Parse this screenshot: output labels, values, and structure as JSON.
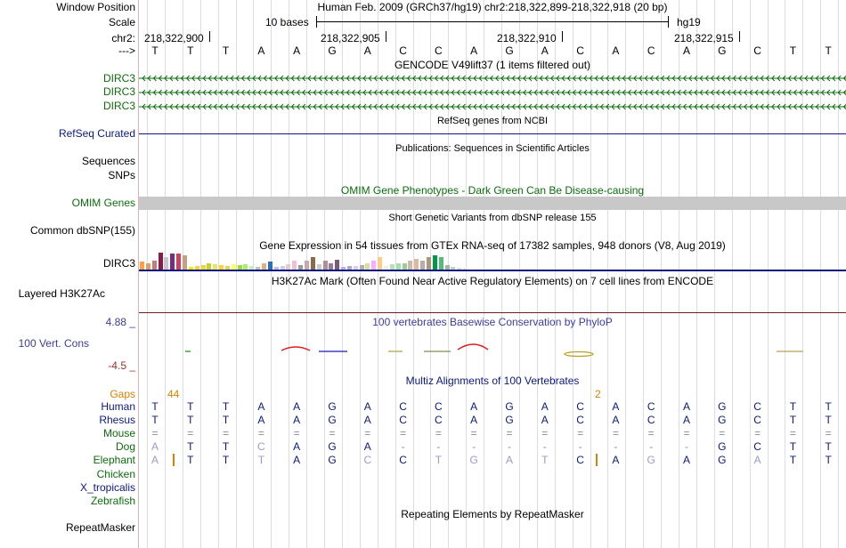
{
  "header": {
    "window_position_label": "Window Position",
    "scale_label": "Scale",
    "chrom_label": "chr2:",
    "strand_label": "--->",
    "assembly_title": "Human Feb. 2009 (GRCh37/hg19)   chr2:218,322,899-218,322,918 (20 bp)",
    "scale_text": "10 bases",
    "assembly_tag": "hg19",
    "positions": [
      "218,322,900",
      "218,322,905",
      "218,322,910",
      "218,322,915"
    ],
    "sequence": [
      "T",
      "T",
      "T",
      "A",
      "A",
      "G",
      "A",
      "C",
      "C",
      "A",
      "G",
      "A",
      "C",
      "A",
      "C",
      "A",
      "G",
      "C",
      "T",
      "T"
    ]
  },
  "tracks": {
    "gencode": {
      "title": "GENCODE V49lift37 (1 items filtered out)",
      "items": [
        "DIRC3",
        "DIRC3",
        "DIRC3"
      ]
    },
    "refseq": {
      "title": "RefSeq genes from NCBI",
      "label": "RefSeq Curated"
    },
    "publications": {
      "title": "Publications: Sequences in Scientific Articles",
      "label_1": "Sequences",
      "label_2": "SNPs"
    },
    "omim": {
      "title": "OMIM Gene Phenotypes - Dark Green Can Be Disease-causing",
      "label": "OMIM Genes"
    },
    "dbsnp": {
      "title": "Short Genetic Variants from dbSNP release 155",
      "label": "Common dbSNP(155)"
    },
    "gtex": {
      "title": "Gene Expression in 54 tissues from GTEx RNA-seq of 17382 samples, 948 donors (V8, Aug 2019)",
      "label": "DIRC3",
      "tissues": [
        {
          "v": 0.45,
          "c": "#ff9f43"
        },
        {
          "v": 0.35,
          "c": "#d8a06a"
        },
        {
          "v": 0.55,
          "c": "#c87878"
        },
        {
          "v": 1.0,
          "c": "#8b1a4a"
        },
        {
          "v": 0.72,
          "c": "#c8c8c8"
        },
        {
          "v": 0.95,
          "c": "#7a2a80"
        },
        {
          "v": 0.95,
          "c": "#d04060"
        },
        {
          "v": 0.85,
          "c": "#c8a080"
        },
        {
          "v": 0.15,
          "c": "#eeee00"
        },
        {
          "v": 0.2,
          "c": "#ffcc44"
        },
        {
          "v": 0.25,
          "c": "#e0e030"
        },
        {
          "v": 0.35,
          "c": "#cccc33"
        },
        {
          "v": 0.3,
          "c": "#e6e666"
        },
        {
          "v": 0.25,
          "c": "#ffd23a"
        },
        {
          "v": 0.2,
          "c": "#e8d44d"
        },
        {
          "v": 0.3,
          "c": "#ffff66"
        },
        {
          "v": 0.25,
          "c": "#99dd44"
        },
        {
          "v": 0.3,
          "c": "#aaee66"
        },
        {
          "v": 0.2,
          "c": "#bfeec0"
        },
        {
          "v": 0.15,
          "c": "#c0c0c0"
        },
        {
          "v": 0.35,
          "c": "#e0b080"
        },
        {
          "v": 0.45,
          "c": "#2c6fbb"
        },
        {
          "v": 0.15,
          "c": "#bbbbee"
        },
        {
          "v": 0.2,
          "c": "#ccccee"
        },
        {
          "v": 0.3,
          "c": "#e8c8c8"
        },
        {
          "v": 0.55,
          "c": "#f0c0d0"
        },
        {
          "v": 0.25,
          "c": "#9a9a9a"
        },
        {
          "v": 0.55,
          "c": "#c8a8a8"
        },
        {
          "v": 0.75,
          "c": "#8a6a4a"
        },
        {
          "v": 0.3,
          "c": "#cccccc"
        },
        {
          "v": 0.55,
          "c": "#b09090"
        },
        {
          "v": 0.35,
          "c": "#9a7a9a"
        },
        {
          "v": 0.6,
          "c": "#7a5a7a"
        },
        {
          "v": 0.15,
          "c": "#c6a6e6"
        },
        {
          "v": 0.2,
          "c": "#aaaacc"
        },
        {
          "v": 0.2,
          "c": "#ddccee"
        },
        {
          "v": 0.25,
          "c": "#b0b0b0"
        },
        {
          "v": 0.35,
          "c": "#dddd99"
        },
        {
          "v": 0.5,
          "c": "#ffaaff"
        },
        {
          "v": 0.75,
          "c": "#ffcc88"
        },
        {
          "v": 0.2,
          "c": "#eeeeee"
        },
        {
          "v": 0.3,
          "c": "#bbddbb"
        },
        {
          "v": 0.35,
          "c": "#aaddaa"
        },
        {
          "v": 0.35,
          "c": "#99cc99"
        },
        {
          "v": 0.55,
          "c": "#ccbbaa"
        },
        {
          "v": 0.65,
          "c": "#ddbb99"
        },
        {
          "v": 0.55,
          "c": "#bbaaaa"
        },
        {
          "v": 0.75,
          "c": "#aa9977"
        },
        {
          "v": 0.85,
          "c": "#00994c"
        },
        {
          "v": 0.75,
          "c": "#55bb77"
        },
        {
          "v": 0.25,
          "c": "#99bb99"
        },
        {
          "v": 0.15,
          "c": "#cccccc"
        },
        {
          "v": 0.1,
          "c": "#dddddd"
        },
        {
          "v": 0.08,
          "c": "#e6e6e6"
        }
      ]
    },
    "h3k27ac": {
      "title": "H3K27Ac Mark (Often Found Near Active Regulatory Elements) on 7 cell lines from ENCODE",
      "label": "Layered H3K27Ac"
    },
    "cons": {
      "title": "100 vertebrates Basewise Conservation by PhyloP",
      "label": "100 Vert. Cons",
      "max_label": "4.88 _",
      "min_label": "-4.5 _"
    },
    "multiz": {
      "title": "Multiz Alignments of 100 Vertebrates",
      "gaps_label": "Gaps",
      "gap_counts": [
        "44",
        "2"
      ],
      "species": [
        {
          "name": "Human",
          "color": "#0c1880",
          "bases": [
            "T",
            "T",
            "T",
            "A",
            "A",
            "G",
            "A",
            "C",
            "C",
            "A",
            "G",
            "A",
            "C",
            "A",
            "C",
            "A",
            "G",
            "C",
            "T",
            "T"
          ]
        },
        {
          "name": "Rhesus",
          "color": "#0c1880",
          "bases": [
            "T",
            "T",
            "T",
            "A",
            "A",
            "G",
            "A",
            "C",
            "C",
            "A",
            "G",
            "A",
            "C",
            "A",
            "C",
            "A",
            "G",
            "C",
            "T",
            "T"
          ]
        },
        {
          "name": "Mouse",
          "color": "#0b6e0b",
          "bases": [
            "=",
            "=",
            "=",
            "=",
            "=",
            "=",
            "=",
            "=",
            "=",
            "=",
            "=",
            "=",
            "=",
            "=",
            "=",
            "=",
            "=",
            "=",
            "=",
            "="
          ]
        },
        {
          "name": "Dog",
          "color": "#0b6e0b",
          "bases": [
            "A",
            "T",
            "T",
            "C",
            "A",
            "G",
            "A",
            "-",
            "-",
            "-",
            "-",
            "-",
            "-",
            "-",
            "-",
            "-",
            "G",
            "C",
            "T",
            "T"
          ]
        },
        {
          "name": "Elephant",
          "color": "#0b6e0b",
          "bases": [
            "A",
            "T",
            "T",
            "T",
            "A",
            "G",
            "C",
            "C",
            "T",
            "G",
            "A",
            "T",
            "C",
            "A",
            "G",
            "A",
            "G",
            "A",
            "T",
            "T"
          ]
        },
        {
          "name": "Chicken",
          "color": "#0b6e0b",
          "bases": []
        },
        {
          "name": "X_tropicalis",
          "color": "#0c1880",
          "bases": []
        },
        {
          "name": "Zebrafish",
          "color": "#0b6e0b",
          "bases": []
        }
      ]
    },
    "repeatmasker": {
      "title": "Repeating Elements by RepeatMasker",
      "label": "RepeatMasker"
    }
  },
  "colors": {
    "gene_green": "#0b6e0b",
    "refseq_navy": "#0c1880",
    "omim_gray": "#c8c8c8",
    "cons_pos": "#e02020",
    "cons_neg": "#4040c0"
  }
}
